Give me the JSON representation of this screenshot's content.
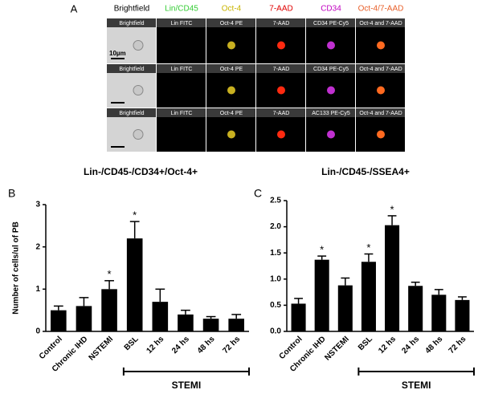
{
  "panel_a": {
    "label": "A",
    "headers": [
      {
        "label": "Brightfield",
        "color": "#000000"
      },
      {
        "label": "Lin/CD45",
        "color": "#33cc33"
      },
      {
        "label": "Oct-4",
        "color": "#c8b400"
      },
      {
        "label": "7-AAD",
        "color": "#e00000"
      },
      {
        "label": "CD34",
        "color": "#c000c0"
      },
      {
        "label": "Oct-4/7-AAD",
        "color": "#e8602a"
      }
    ],
    "rows": [
      [
        "Brightfield",
        "Lin FITC",
        "Oct-4 PE",
        "7-AAD",
        "CD34 PE-Cy5",
        "Oct-4 and 7-AAD"
      ],
      [
        "Brightfield",
        "Lin FITC",
        "Oct-4 PE",
        "7-AAD",
        "CD34 PE-Cy5",
        "Oct-4 and 7-AAD"
      ],
      [
        "Brightfield",
        "Lin FITC",
        "Oct-4 PE",
        "7-AAD",
        "AC133 PE-Cy5",
        "Oct-4 and 7-AAD"
      ]
    ],
    "scale_bar": "10µm"
  },
  "chart_data": [
    {
      "type": "bar",
      "panel": "B",
      "title": "Lin-/CD45-/CD34+/Oct-4+",
      "y_label": "Number of cells/ul of PB",
      "categories": [
        "Control",
        "Chronic IHD",
        "NSTEMI",
        "BSL",
        "12 hs",
        "24 hs",
        "48 hs",
        "72 hs"
      ],
      "values": [
        0.5,
        0.6,
        1.0,
        2.2,
        0.7,
        0.4,
        0.3,
        0.3
      ],
      "errors": [
        0.1,
        0.2,
        0.2,
        0.4,
        0.3,
        0.1,
        0.05,
        0.1
      ],
      "stars": [
        null,
        null,
        "*",
        "*",
        null,
        null,
        null,
        null
      ],
      "color": "#000000",
      "ylim": [
        0,
        3
      ],
      "yticks": [
        0,
        1,
        2,
        3
      ],
      "group": {
        "label": "STEMI",
        "first": "BSL",
        "last": "72 hs"
      }
    },
    {
      "type": "bar",
      "panel": "C",
      "title": "Lin-/CD45-/SSEA4+",
      "categories": [
        "Control",
        "Chronic IHD",
        "NSTEMI",
        "BSL",
        "12 hs",
        "24 hs",
        "48 hs",
        "72 hs"
      ],
      "values": [
        0.53,
        1.37,
        0.88,
        1.33,
        2.03,
        0.87,
        0.7,
        0.6
      ],
      "errors": [
        0.1,
        0.07,
        0.14,
        0.15,
        0.18,
        0.07,
        0.1,
        0.06
      ],
      "stars": [
        null,
        "*",
        null,
        "*",
        "*",
        null,
        null,
        null
      ],
      "color": "#000000",
      "ylim": [
        0,
        2.5
      ],
      "yticks": [
        {
          "value": 0,
          "label": "0.0"
        },
        0.5,
        {
          "value": 1,
          "label": "1.0"
        },
        1.5,
        {
          "value": 2,
          "label": "2.0"
        },
        2.5
      ],
      "group": {
        "label": "STEMI",
        "first": "BSL",
        "last": "72 hs"
      }
    }
  ]
}
